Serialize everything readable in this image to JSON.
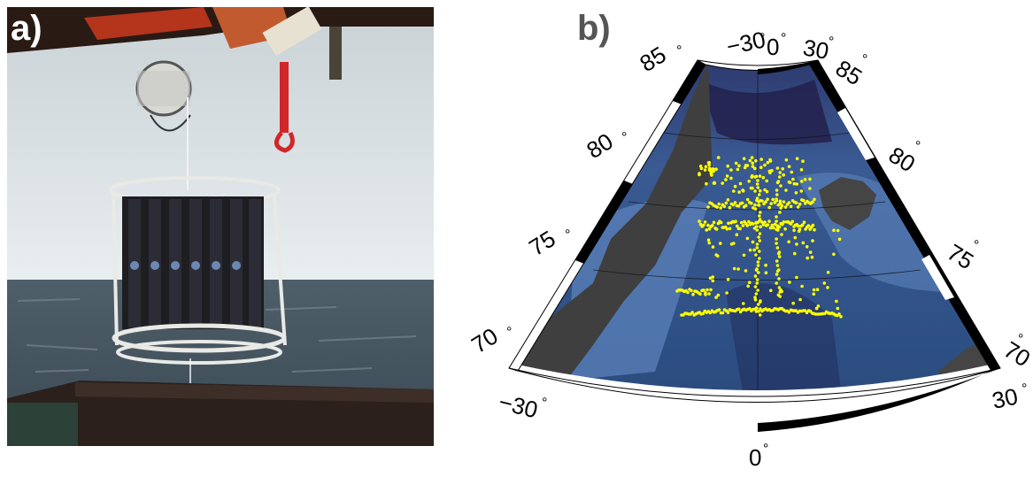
{
  "panel_a": {
    "label": "a)"
  },
  "panel_b": {
    "label": "b)",
    "longitude_labels": {
      "west": "−30",
      "center": "0",
      "east": "30"
    },
    "latitude_labels": [
      "85",
      "80",
      "75",
      "70"
    ],
    "degree_symbol": "°"
  },
  "colors": {
    "sea": "#2c4f83",
    "deep_sea": "#2a2e5e",
    "land": "#3f3f3f",
    "stations": "#ffff00",
    "frame_dark": "#000000",
    "frame_light": "#ffffff"
  }
}
